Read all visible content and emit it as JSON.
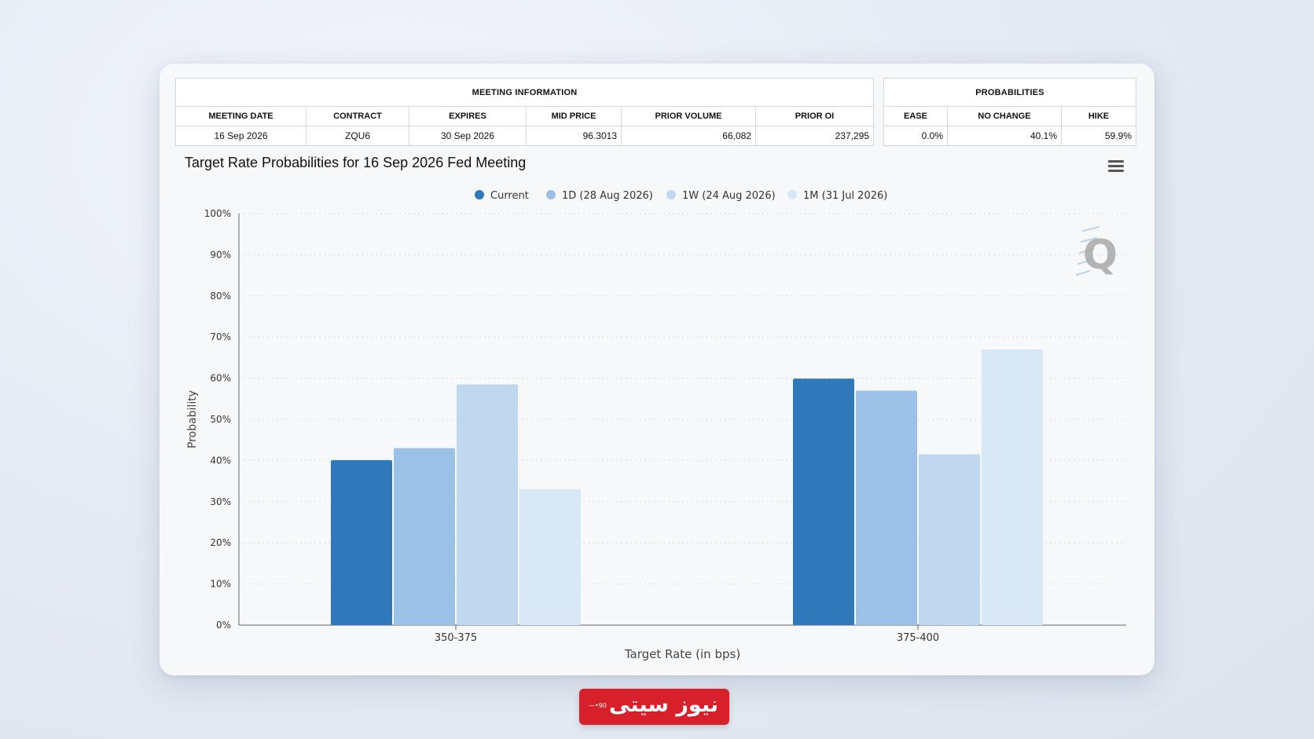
{
  "meeting_info": {
    "group_title": "MEETING INFORMATION",
    "headers": [
      "MEETING DATE",
      "CONTRACT",
      "EXPIRES",
      "MID PRICE",
      "PRIOR VOLUME",
      "PRIOR OI"
    ],
    "values": [
      "16 Sep 2026",
      "ZQU6",
      "30 Sep 2026",
      "96.3013",
      "66,082",
      "237,295"
    ]
  },
  "probabilities": {
    "group_title": "PROBABILITIES",
    "headers": [
      "EASE",
      "NO CHANGE",
      "HIKE"
    ],
    "values": [
      "0.0%",
      "40.1%",
      "59.9%"
    ]
  },
  "toolbar": {
    "menu_icon": "hamburger-menu-icon"
  },
  "watermark": {
    "text": "Q"
  },
  "brand_badge": {
    "text": "نیوز سیتی",
    "color": "#d8202a"
  },
  "colors": {
    "current": "#2f78b9",
    "1d": "#9bc2e6",
    "1w": "#bfd8ef",
    "1m": "#d9e8f6",
    "grid": "#d8dbe0",
    "axis": "#666666"
  },
  "chart_data": {
    "type": "bar",
    "title": "Target Rate Probabilities for 16 Sep 2026 Fed Meeting",
    "xlabel": "Target Rate (in bps)",
    "ylabel": "Probability",
    "categories": [
      "350-375",
      "375-400"
    ],
    "ylim": [
      0,
      100
    ],
    "yticks": [
      "0%",
      "10%",
      "20%",
      "30%",
      "40%",
      "50%",
      "60%",
      "70%",
      "80%",
      "90%",
      "100%"
    ],
    "grid": true,
    "legend_position": "top-center",
    "series": [
      {
        "name": "Current",
        "values": [
          40.1,
          59.9
        ],
        "color": "#2f78b9"
      },
      {
        "name": "1D (28 Aug 2026)",
        "values": [
          43.0,
          57.0
        ],
        "color": "#9bc2e6"
      },
      {
        "name": "1W (24 Aug 2026)",
        "values": [
          58.5,
          41.5
        ],
        "color": "#bfd8ef"
      },
      {
        "name": "1M (31 Jul 2026)",
        "values": [
          33.0,
          67.0
        ],
        "color": "#d9e8f6"
      }
    ]
  }
}
